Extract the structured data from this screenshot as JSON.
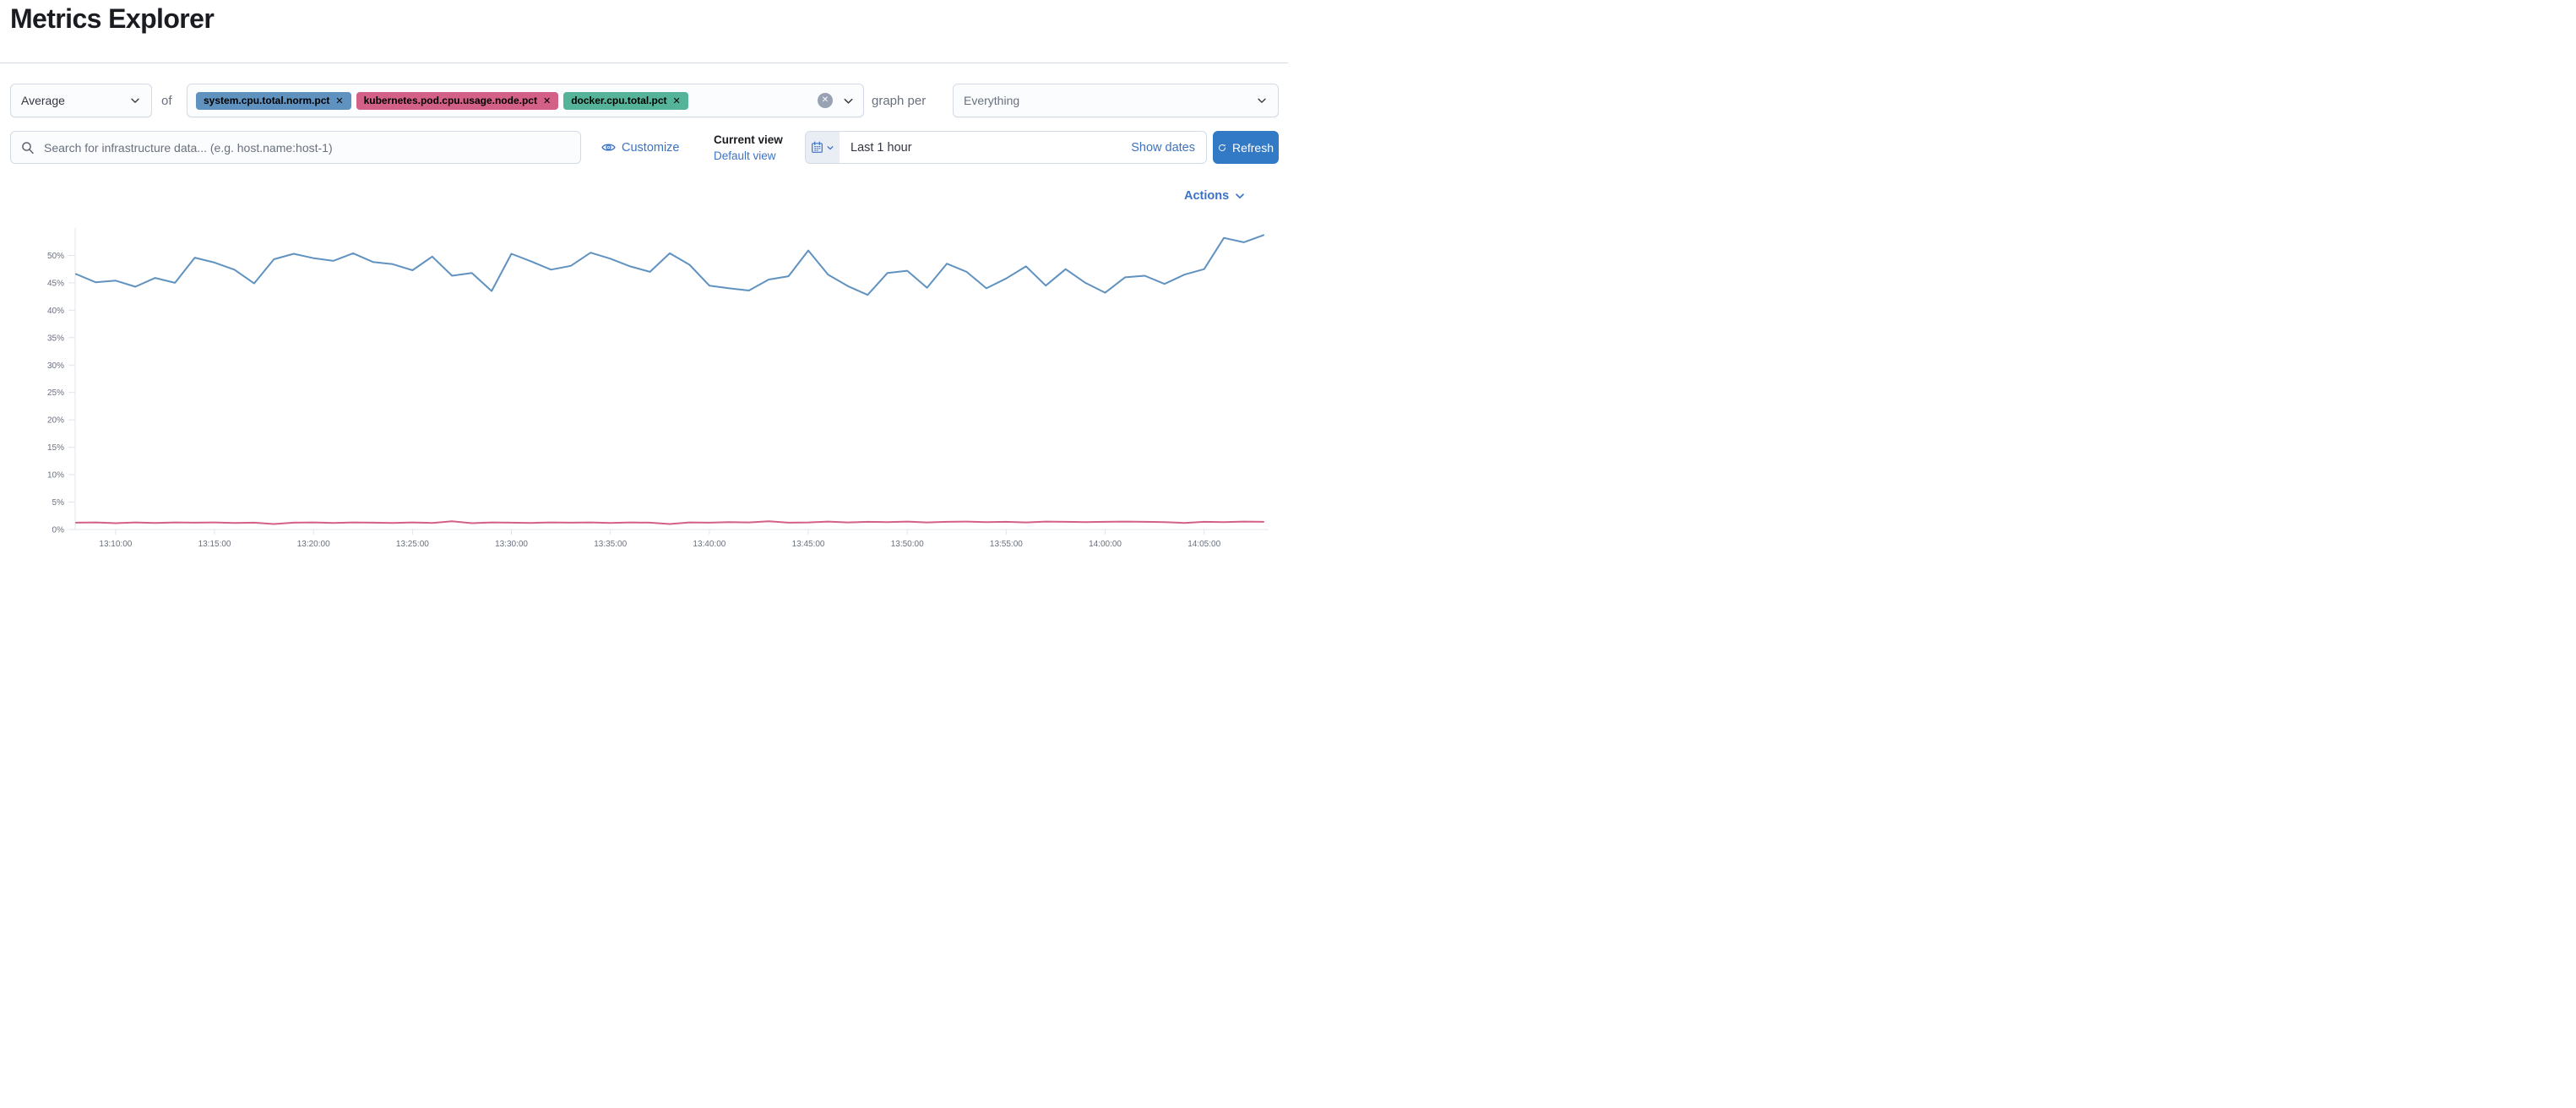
{
  "page": {
    "title": "Metrics Explorer"
  },
  "toolbar": {
    "aggregation_value": "Average",
    "of_label": "of",
    "metrics": [
      {
        "label": "system.cpu.total.norm.pct",
        "color": "#6092C0"
      },
      {
        "label": "kubernetes.pod.cpu.usage.node.pct",
        "color": "#D36086"
      },
      {
        "label": "docker.cpu.total.pct",
        "color": "#54B399"
      }
    ],
    "graph_per_label": "graph per",
    "group_by_value": "Everything"
  },
  "searchbar": {
    "placeholder": "Search for infrastructure data... (e.g. host.name:host-1)",
    "customize_label": "Customize",
    "current_view_label": "Current view",
    "default_view_label": "Default view",
    "time_range": "Last 1 hour",
    "show_dates_label": "Show dates",
    "refresh_label": "Refresh"
  },
  "actions_label": "Actions",
  "colors": {
    "link_blue": "#3d73c5",
    "refresh_button": "#337ac6",
    "series_blue": "#6092C0",
    "series_pink": "#D36086",
    "badge_green": "#54B399",
    "axis_line": "#dfe4ec",
    "axis_text": "#69707d"
  },
  "chart_data": {
    "type": "line",
    "title": "",
    "xlabel": "",
    "ylabel": "",
    "ylim": [
      0,
      55
    ],
    "grid": false,
    "legend": "none",
    "y_ticks": [
      "0%",
      "5%",
      "10%",
      "15%",
      "20%",
      "25%",
      "30%",
      "35%",
      "40%",
      "45%",
      "50%"
    ],
    "x_ticks": [
      "13:10:00",
      "13:15:00",
      "13:20:00",
      "13:25:00",
      "13:30:00",
      "13:35:00",
      "13:40:00",
      "13:45:00",
      "13:50:00",
      "13:55:00",
      "14:00:00",
      "14:05:00"
    ],
    "x_tick_first_index": 2,
    "x_tick_step": 5,
    "series": [
      {
        "name": "system.cpu.total.norm.pct",
        "color": "#6092C0",
        "values": [
          46.6,
          45.1,
          45.4,
          44.3,
          45.9,
          45.0,
          49.6,
          48.7,
          47.4,
          44.9,
          49.3,
          50.3,
          49.5,
          49.0,
          50.4,
          48.8,
          48.4,
          47.3,
          49.8,
          46.3,
          46.8,
          43.5,
          50.3,
          48.9,
          47.4,
          48.1,
          50.5,
          49.4,
          48.0,
          47.0,
          50.4,
          48.3,
          44.5,
          44.0,
          43.6,
          45.6,
          46.2,
          50.9,
          46.5,
          44.4,
          42.8,
          46.8,
          47.2,
          44.1,
          48.5,
          47.0,
          44.0,
          45.8,
          48.0,
          44.5,
          47.5,
          45.0,
          43.2,
          46.0,
          46.3,
          44.8,
          46.5,
          47.5,
          53.2,
          52.4,
          53.7
        ]
      },
      {
        "name": "kubernetes.pod.cpu.usage.node.pct",
        "color": "#D36086",
        "values": [
          1.25,
          1.3,
          1.15,
          1.3,
          1.2,
          1.3,
          1.25,
          1.3,
          1.2,
          1.25,
          1.0,
          1.25,
          1.3,
          1.2,
          1.3,
          1.25,
          1.2,
          1.3,
          1.2,
          1.5,
          1.15,
          1.3,
          1.25,
          1.2,
          1.3,
          1.25,
          1.3,
          1.2,
          1.3,
          1.25,
          1.0,
          1.3,
          1.25,
          1.35,
          1.3,
          1.5,
          1.25,
          1.3,
          1.45,
          1.3,
          1.4,
          1.35,
          1.45,
          1.3,
          1.4,
          1.45,
          1.35,
          1.4,
          1.3,
          1.45,
          1.4,
          1.35,
          1.4,
          1.45,
          1.4,
          1.35,
          1.2,
          1.4,
          1.35,
          1.45,
          1.4
        ]
      }
    ]
  }
}
